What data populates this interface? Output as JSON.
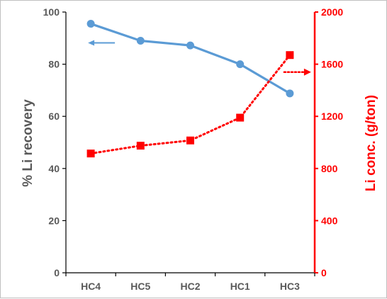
{
  "chart_data": {
    "type": "line",
    "categories": [
      "HC4",
      "HC5",
      "HC2",
      "HC1",
      "HC3"
    ],
    "series": [
      {
        "values": [
          95.5,
          89.0,
          87.2,
          80.0,
          68.8
        ],
        "axis": "left",
        "color": "#5b9bd5",
        "line_style": "solid",
        "marker": "circle"
      },
      {
        "values": [
          915,
          975,
          1015,
          1190,
          1670
        ],
        "axis": "right",
        "color": "#ff0000",
        "line_style": "dotted",
        "marker": "square"
      }
    ],
    "ylabel_left": "% Li recovery",
    "ylabel_right": "Li conc. (g/ton)",
    "ylim_left": [
      0,
      100
    ],
    "ylim_right": [
      0,
      2000
    ],
    "yticks_left": [
      "0",
      "20",
      "40",
      "60",
      "80",
      "100"
    ],
    "yticks_right": [
      "0",
      "400",
      "800",
      "1200",
      "1600",
      "2000"
    ],
    "grid": false,
    "legend": "none",
    "left_axis_color": "#000000",
    "right_axis_color": "#ff0000",
    "left_title_color": "#595959",
    "annotations": [
      {
        "type": "arrow",
        "direction": "left",
        "color": "#5b9bd5",
        "style": "solid",
        "series": 0
      },
      {
        "type": "arrow",
        "direction": "right",
        "color": "#ff0000",
        "style": "dotted",
        "series": 1
      }
    ]
  }
}
